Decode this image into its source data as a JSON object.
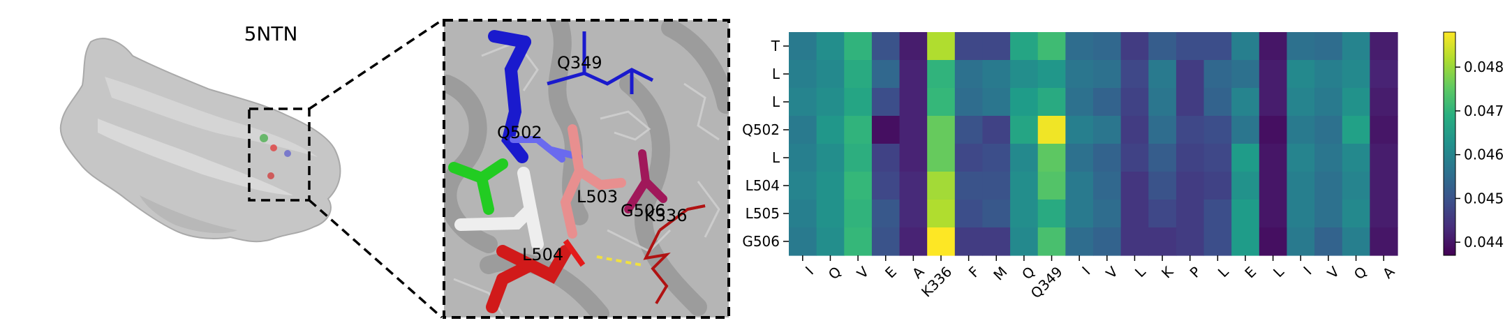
{
  "figure": {
    "pdb_id": "5NTN",
    "structure_labels": [
      "Q349",
      "Q502",
      "L503",
      "G506",
      "K336",
      "L504"
    ],
    "colors": {
      "surface": "#c8c8c8",
      "ribbon": "#9a9a9a",
      "blue_residue": "#1a1acd",
      "green_residue": "#22cc22",
      "pink_residue": "#e88f8f",
      "red_residue": "#d11a1a",
      "magenta_residue": "#a0185a",
      "darkred_line": "#b01212",
      "hbond": "#f0e040"
    }
  },
  "chart_data": {
    "type": "heatmap",
    "title": "",
    "xlabel": "",
    "ylabel": "",
    "colormap": "viridis",
    "x_labels": [
      "I",
      "Q",
      "V",
      "E",
      "A",
      "K336",
      "F",
      "M",
      "Q",
      "Q349",
      "I",
      "V",
      "L",
      "K",
      "P",
      "L",
      "E",
      "L",
      "I",
      "V",
      "Q",
      "A"
    ],
    "y_labels": [
      "T",
      "L",
      "L",
      "Q502",
      "L",
      "L504",
      "L505",
      "G506"
    ],
    "colorbar": {
      "min": 0.0437,
      "max": 0.0488,
      "ticks": [
        0.044,
        0.045,
        0.046,
        0.047,
        0.048
      ]
    },
    "values": [
      [
        0.0458,
        0.0462,
        0.047,
        0.045,
        0.0441,
        0.0482,
        0.0448,
        0.0448,
        0.0467,
        0.0472,
        0.0455,
        0.0454,
        0.0446,
        0.0452,
        0.0449,
        0.0449,
        0.0459,
        0.044,
        0.0456,
        0.0455,
        0.046,
        0.0441
      ],
      [
        0.0459,
        0.0461,
        0.0468,
        0.0454,
        0.0442,
        0.047,
        0.0456,
        0.0458,
        0.0462,
        0.0464,
        0.0457,
        0.0456,
        0.0448,
        0.0458,
        0.0446,
        0.0454,
        0.0456,
        0.0441,
        0.0461,
        0.0459,
        0.0461,
        0.0442
      ],
      [
        0.046,
        0.0462,
        0.0467,
        0.0449,
        0.0442,
        0.0471,
        0.0455,
        0.0457,
        0.0465,
        0.0468,
        0.0456,
        0.0453,
        0.0447,
        0.0457,
        0.0446,
        0.0453,
        0.046,
        0.0441,
        0.046,
        0.0458,
        0.0463,
        0.0441
      ],
      [
        0.0458,
        0.0464,
        0.047,
        0.0439,
        0.0442,
        0.0476,
        0.045,
        0.0447,
        0.0467,
        0.0487,
        0.0459,
        0.0457,
        0.0446,
        0.0455,
        0.0448,
        0.0449,
        0.0457,
        0.0439,
        0.0458,
        0.0456,
        0.0466,
        0.044
      ],
      [
        0.0459,
        0.0462,
        0.0469,
        0.0447,
        0.0442,
        0.0476,
        0.0448,
        0.0449,
        0.0461,
        0.0475,
        0.0456,
        0.0453,
        0.0447,
        0.0452,
        0.0447,
        0.0448,
        0.0465,
        0.044,
        0.046,
        0.0457,
        0.0461,
        0.0441
      ],
      [
        0.046,
        0.0463,
        0.0471,
        0.0448,
        0.0443,
        0.0481,
        0.045,
        0.045,
        0.0462,
        0.0474,
        0.0458,
        0.0454,
        0.0445,
        0.045,
        0.0446,
        0.0447,
        0.0463,
        0.044,
        0.0459,
        0.0456,
        0.046,
        0.0441
      ],
      [
        0.0459,
        0.0463,
        0.047,
        0.0451,
        0.0443,
        0.0482,
        0.0449,
        0.0451,
        0.0462,
        0.0468,
        0.0458,
        0.0455,
        0.0445,
        0.0448,
        0.0446,
        0.0449,
        0.0465,
        0.044,
        0.0459,
        0.0456,
        0.0461,
        0.0441
      ],
      [
        0.0458,
        0.0462,
        0.0471,
        0.045,
        0.0442,
        0.0488,
        0.0446,
        0.0446,
        0.0461,
        0.0473,
        0.0455,
        0.0453,
        0.0445,
        0.0445,
        0.0446,
        0.0449,
        0.0465,
        0.0439,
        0.0458,
        0.0453,
        0.0459,
        0.044
      ]
    ]
  }
}
